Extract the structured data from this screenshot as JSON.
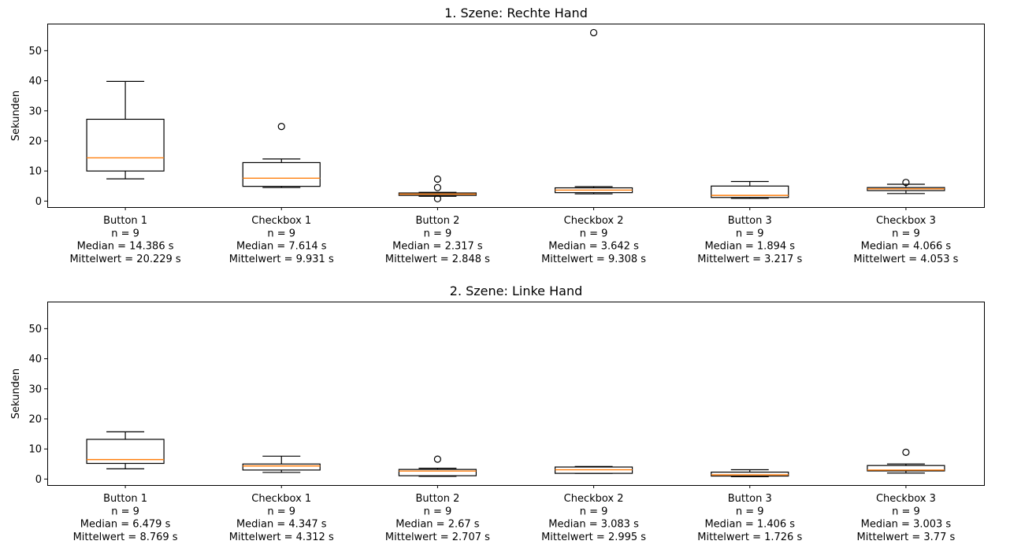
{
  "chart_data": [
    {
      "type": "box",
      "title": "1. Szene: Rechte Hand",
      "ylabel": "Sekunden",
      "ylim": [
        -2,
        59
      ],
      "yticks": [
        0,
        10,
        20,
        30,
        40,
        50
      ],
      "colors": {
        "box": "#000000",
        "median": "#ff7f0e",
        "outlier": "#000000"
      },
      "boxes": [
        {
          "label": [
            "Button 1",
            "n = 9",
            "Median = 14.386 s",
            "Mittelwert = 20.229 s"
          ],
          "whislo": 7.4,
          "q1": 10.0,
          "med": 14.386,
          "q3": 27.2,
          "whishi": 39.8,
          "fliers": []
        },
        {
          "label": [
            "Checkbox 1",
            "n = 9",
            "Median = 7.614 s",
            "Mittelwert = 9.931 s"
          ],
          "whislo": 4.5,
          "q1": 4.9,
          "med": 7.614,
          "q3": 12.8,
          "whishi": 14.0,
          "fliers": [
            24.8
          ]
        },
        {
          "label": [
            "Button 2",
            "n = 9",
            "Median = 2.317 s",
            "Mittelwert = 2.848 s"
          ],
          "whislo": 1.6,
          "q1": 1.9,
          "med": 2.317,
          "q3": 2.7,
          "whishi": 2.9,
          "fliers": [
            7.3,
            4.5,
            0.8
          ]
        },
        {
          "label": [
            "Checkbox 2",
            "n = 9",
            "Median = 3.642 s",
            "Mittelwert = 9.308 s"
          ],
          "whislo": 2.4,
          "q1": 2.8,
          "med": 3.642,
          "q3": 4.4,
          "whishi": 4.8,
          "fliers": [
            56.0
          ]
        },
        {
          "label": [
            "Button 3",
            "n = 9",
            "Median = 1.894 s",
            "Mittelwert = 3.217 s"
          ],
          "whislo": 0.9,
          "q1": 1.2,
          "med": 1.894,
          "q3": 5.0,
          "whishi": 6.5,
          "fliers": []
        },
        {
          "label": [
            "Checkbox 3",
            "n = 9",
            "Median = 4.066 s",
            "Mittelwert = 4.053 s"
          ],
          "whislo": 2.5,
          "q1": 3.5,
          "med": 4.066,
          "q3": 4.5,
          "whishi": 5.6,
          "fliers": [
            6.2
          ]
        }
      ]
    },
    {
      "type": "box",
      "title": "2. Szene: Linke Hand",
      "ylabel": "Sekunden",
      "ylim": [
        -2,
        59
      ],
      "yticks": [
        0,
        10,
        20,
        30,
        40,
        50
      ],
      "colors": {
        "box": "#000000",
        "median": "#ff7f0e",
        "outlier": "#000000"
      },
      "boxes": [
        {
          "label": [
            "Button 1",
            "n = 9",
            "Median = 6.479 s",
            "Mittelwert = 8.769 s"
          ],
          "whislo": 3.4,
          "q1": 5.2,
          "med": 6.479,
          "q3": 13.2,
          "whishi": 15.7,
          "fliers": []
        },
        {
          "label": [
            "Checkbox 1",
            "n = 9",
            "Median = 4.347 s",
            "Mittelwert = 4.312 s"
          ],
          "whislo": 2.2,
          "q1": 3.0,
          "med": 4.347,
          "q3": 5.0,
          "whishi": 7.6,
          "fliers": []
        },
        {
          "label": [
            "Button 2",
            "n = 9",
            "Median = 2.67 s",
            "Mittelwert = 2.707 s"
          ],
          "whislo": 0.9,
          "q1": 1.1,
          "med": 2.67,
          "q3": 3.2,
          "whishi": 3.6,
          "fliers": [
            6.6
          ]
        },
        {
          "label": [
            "Checkbox 2",
            "n = 9",
            "Median = 3.083 s",
            "Mittelwert = 2.995 s"
          ],
          "whislo": 1.9,
          "q1": 1.9,
          "med": 3.083,
          "q3": 4.0,
          "whishi": 4.2,
          "fliers": []
        },
        {
          "label": [
            "Button 3",
            "n = 9",
            "Median = 1.406 s",
            "Mittelwert = 1.726 s"
          ],
          "whislo": 0.8,
          "q1": 1.0,
          "med": 1.406,
          "q3": 2.3,
          "whishi": 3.1,
          "fliers": []
        },
        {
          "label": [
            "Checkbox 3",
            "n = 9",
            "Median = 3.003 s",
            "Mittelwert = 3.77 s"
          ],
          "whislo": 2.0,
          "q1": 2.7,
          "med": 3.003,
          "q3": 4.5,
          "whishi": 5.0,
          "fliers": [
            8.9
          ]
        }
      ]
    }
  ]
}
